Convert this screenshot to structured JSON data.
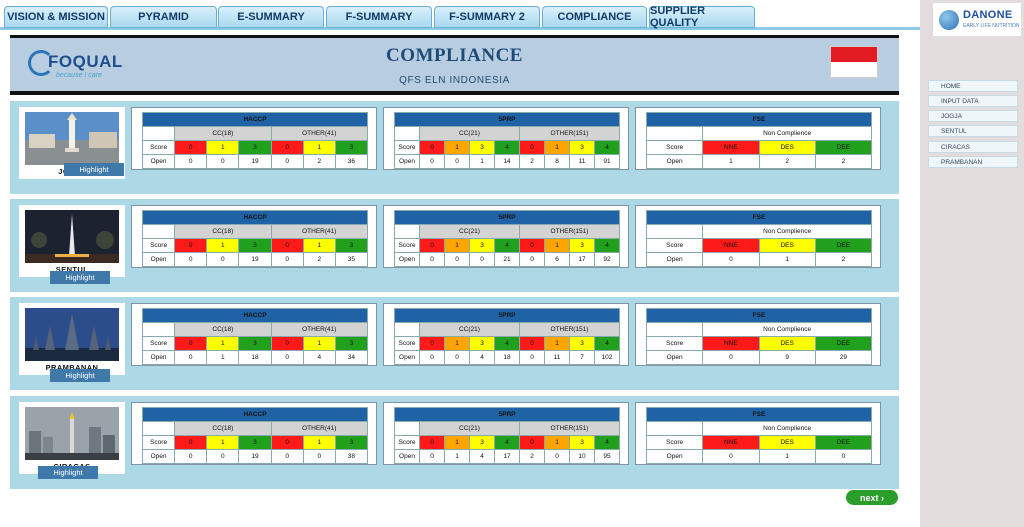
{
  "tabs": [
    {
      "label": "VISION & MISSION"
    },
    {
      "label": "PYRAMID"
    },
    {
      "label": "E-SUMMARY"
    },
    {
      "label": "F-SUMMARY"
    },
    {
      "label": "F-SUMMARY 2"
    },
    {
      "label": "COMPLIANCE"
    },
    {
      "label": "SUPPLIER QUALITY"
    }
  ],
  "brand": {
    "name": "DANONE",
    "sub": "EARLY LIFE NUTRITION",
    "foqual": "FOQUAL",
    "foqual_tag": "because I care"
  },
  "header": {
    "title": "COMPLIANCE",
    "subtitle": "QFS ELN INDONESIA"
  },
  "nav": [
    {
      "label": "HOME"
    },
    {
      "label": "INPUT DATA"
    },
    {
      "label": "JOGJA"
    },
    {
      "label": "SENTUL"
    },
    {
      "label": "CIRACAS"
    },
    {
      "label": "PRAMBANAN"
    }
  ],
  "labels": {
    "score": "Score",
    "open": "Open",
    "highlight": "Highlight",
    "next": "next"
  },
  "colors": {
    "red": "#ff1a1a",
    "orange": "#ffa500",
    "yellow": "#ffff00",
    "green": "#21a01e",
    "header_blue": "#1f63a6",
    "row_bg": "#add8e6"
  },
  "sites": [
    {
      "name": "JOGJA",
      "haccp": {
        "title": "HACCP",
        "cc_label": "CC(18)",
        "other_label": "OTHER(41)",
        "cc_score": [
          "0",
          "1",
          "3"
        ],
        "other_score": [
          "0",
          "1",
          "3"
        ],
        "cc_open": [
          "0",
          "0",
          "19"
        ],
        "other_open": [
          "0",
          "2",
          "36"
        ]
      },
      "prp": {
        "title": "5PRP",
        "cc_label": "CC(21)",
        "other_label": "OTHER(151)",
        "cc_score": [
          "0",
          "1",
          "3",
          "4"
        ],
        "other_score": [
          "0",
          "1",
          "3",
          "4"
        ],
        "cc_open": [
          "0",
          "0",
          "1",
          "14"
        ],
        "other_open": [
          "2",
          "8",
          "11",
          "91"
        ]
      },
      "fse": {
        "title": "FSE",
        "nc_label": "Non Complience",
        "score": [
          "NNE",
          "DES",
          "DEE"
        ],
        "open": [
          "1",
          "2",
          "2"
        ]
      }
    },
    {
      "name": "SENTUL",
      "haccp": {
        "title": "HACCP",
        "cc_label": "CC(18)",
        "other_label": "OTHER(41)",
        "cc_score": [
          "0",
          "1",
          "3"
        ],
        "other_score": [
          "0",
          "1",
          "3"
        ],
        "cc_open": [
          "0",
          "0",
          "19"
        ],
        "other_open": [
          "0",
          "2",
          "35"
        ]
      },
      "prp": {
        "title": "5PRP",
        "cc_label": "CC(21)",
        "other_label": "OTHER(151)",
        "cc_score": [
          "0",
          "1",
          "3",
          "4"
        ],
        "other_score": [
          "0",
          "1",
          "3",
          "4"
        ],
        "cc_open": [
          "0",
          "0",
          "0",
          "21"
        ],
        "other_open": [
          "0",
          "6",
          "17",
          "92"
        ]
      },
      "fse": {
        "title": "FSE",
        "nc_label": "Non Complience",
        "score": [
          "NNE",
          "DES",
          "DEE"
        ],
        "open": [
          "0",
          "1",
          "2"
        ]
      }
    },
    {
      "name": "PRAMBANAN",
      "haccp": {
        "title": "HACCP",
        "cc_label": "CC(18)",
        "other_label": "OTHER(41)",
        "cc_score": [
          "0",
          "1",
          "3"
        ],
        "other_score": [
          "0",
          "1",
          "3"
        ],
        "cc_open": [
          "0",
          "1",
          "18"
        ],
        "other_open": [
          "0",
          "4",
          "34"
        ]
      },
      "prp": {
        "title": "5PRP",
        "cc_label": "CC(21)",
        "other_label": "OTHER(151)",
        "cc_score": [
          "0",
          "1",
          "3",
          "4"
        ],
        "other_score": [
          "0",
          "1",
          "3",
          "4"
        ],
        "cc_open": [
          "0",
          "0",
          "4",
          "18"
        ],
        "other_open": [
          "0",
          "11",
          "7",
          "102"
        ]
      },
      "fse": {
        "title": "FSE",
        "nc_label": "Non Complience",
        "score": [
          "NNE",
          "DES",
          "DEE"
        ],
        "open": [
          "0",
          "9",
          "29"
        ]
      }
    },
    {
      "name": "CIRACAS",
      "haccp": {
        "title": "HACCP",
        "cc_label": "CC(18)",
        "other_label": "OTHER(41)",
        "cc_score": [
          "0",
          "1",
          "3"
        ],
        "other_score": [
          "0",
          "1",
          "3"
        ],
        "cc_open": [
          "0",
          "0",
          "19"
        ],
        "other_open": [
          "0",
          "0",
          "38"
        ]
      },
      "prp": {
        "title": "5PRP",
        "cc_label": "CC(21)",
        "other_label": "OTHER(151)",
        "cc_score": [
          "0",
          "1",
          "3",
          "4"
        ],
        "other_score": [
          "0",
          "1",
          "3",
          "4"
        ],
        "cc_open": [
          "0",
          "1",
          "4",
          "17"
        ],
        "other_open": [
          "2",
          "0",
          "10",
          "95"
        ]
      },
      "fse": {
        "title": "FSE",
        "nc_label": "Non Complience",
        "score": [
          "NNE",
          "DES",
          "DEE"
        ],
        "open": [
          "0",
          "1",
          "0"
        ]
      }
    }
  ]
}
